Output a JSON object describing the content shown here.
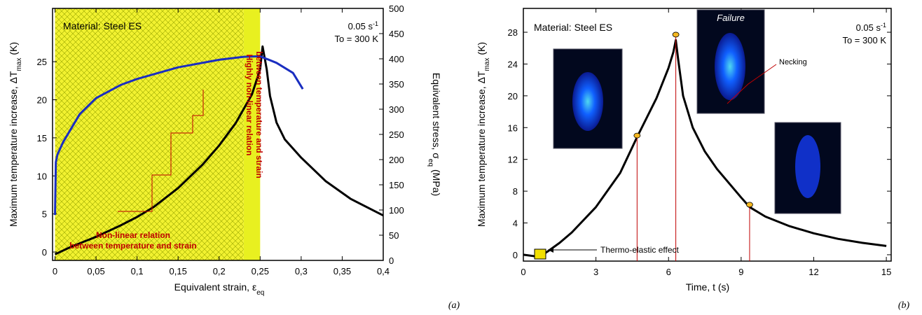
{
  "chart_data": [
    {
      "type": "line",
      "panel_label": "(a)",
      "material": "Material: Steel ES",
      "rate": "0.05 s",
      "rate_sup": "-1",
      "temperature": "To = 300 K",
      "xlabel": "Equivalent strain, ε",
      "xlabel_sub": "eq",
      "ylabel": "Maximum temperature increase, ΔT",
      "ylabel_sub": "max",
      "ylabel_end": "(K)",
      "y2label": "Equivalent stress, σ",
      "y2label_sub": "eq",
      "y2label_end": "(MPa)",
      "annotations": [
        "Non-linear relation",
        "between temperature and strain",
        "Highly non-linear relation",
        "between temperature and strain"
      ],
      "xlim": [
        -0.003,
        0.4
      ],
      "xticks": [
        0,
        {
          "value": 0.05,
          "label": "0,05"
        },
        {
          "value": 0.1,
          "label": "0,1"
        },
        {
          "value": 0.15,
          "label": "0,15"
        },
        {
          "value": 0.2,
          "label": "0,2"
        },
        {
          "value": 0.25,
          "label": "0,25"
        },
        {
          "value": 0.3,
          "label": "0,3"
        },
        {
          "value": 0.35,
          "label": "0,35"
        },
        {
          "value": 0.4,
          "label": "0,4"
        }
      ],
      "ylim": [
        -1.1,
        32
      ],
      "yticks": [
        0,
        5,
        10,
        15,
        20,
        25
      ],
      "y2lim": [
        0,
        500
      ],
      "y2ticks": [
        0,
        50,
        100,
        150,
        200,
        250,
        300,
        350,
        400,
        450,
        500
      ],
      "regions": [
        {
          "x": [
            0,
            0.23
          ],
          "color": "#f2f230",
          "style": "hatched"
        },
        {
          "x": [
            0.23,
            0.25
          ],
          "color": "#e8f020",
          "style": "solid"
        }
      ],
      "series": [
        {
          "color": "#000000",
          "x": [
            0,
            0.02,
            0.05,
            0.08,
            0.1,
            0.12,
            0.15,
            0.18,
            0.2,
            0.22,
            0.24,
            0.25,
            0.253,
            0.258,
            0.262,
            0.27,
            0.28,
            0.3,
            0.33,
            0.36,
            0.4
          ],
          "values": [
            -0.3,
            0.7,
            2,
            3.5,
            4.6,
            5.9,
            8.4,
            11.5,
            14,
            16.9,
            20.7,
            24,
            27,
            24,
            20.5,
            17,
            14.8,
            12.4,
            9.3,
            7,
            4.8
          ]
        },
        {
          "color": "#1a2ec0",
          "axis": "y2",
          "x": [
            0,
            0.001,
            0.003,
            0.01,
            0.03,
            0.05,
            0.08,
            0.1,
            0.15,
            0.2,
            0.23,
            0.25,
            0.27,
            0.29,
            0.302
          ],
          "values": [
            90,
            195,
            210,
            235,
            290,
            322,
            348,
            360,
            383,
            398,
            404,
            405,
            392,
            372,
            340
          ]
        }
      ]
    },
    {
      "type": "line",
      "panel_label": "(b)",
      "material": "Material: Steel ES",
      "rate": "0.05 s",
      "rate_sup": "-1",
      "temperature": "To = 300 K",
      "xlabel": "Time, t (s)",
      "ylabel": "Maximum temperature increase, ΔT",
      "ylabel_sub": "max",
      "ylabel_end": "(K)",
      "annotations": [
        "Thermo-elastic effect",
        "Failure",
        "Necking"
      ],
      "xlim": [
        0,
        15.2
      ],
      "xticks": [
        0,
        3,
        6,
        9,
        12,
        15
      ],
      "ylim": [
        -0.8,
        31
      ],
      "yticks": [
        0,
        4,
        8,
        12,
        16,
        20,
        24,
        28
      ],
      "series": [
        {
          "color": "#000000",
          "x": [
            0,
            0.5,
            0.8,
            1,
            1.5,
            2,
            3,
            4,
            4.7,
            5.5,
            6,
            6.2,
            6.3,
            6.4,
            6.6,
            7,
            7.5,
            8,
            9,
            9.35,
            10,
            11,
            12,
            13,
            14,
            15
          ],
          "values": [
            0,
            -0.2,
            0,
            0.4,
            1.5,
            2.8,
            6,
            10.3,
            14.8,
            19.7,
            23.5,
            25.5,
            27,
            24.5,
            20,
            16,
            13,
            10.8,
            7.2,
            6,
            4.8,
            3.6,
            2.7,
            2,
            1.5,
            1.1
          ]
        }
      ],
      "markers": {
        "color": "#f5b820",
        "x": [
          4.7,
          6.3,
          9.35
        ],
        "values": [
          15,
          27.7,
          6.3
        ]
      }
    }
  ]
}
